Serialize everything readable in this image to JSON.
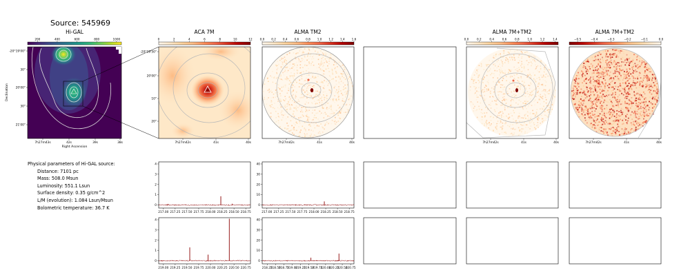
{
  "source_title": "Source: 545969",
  "colors": {
    "viridis": [
      "#440154",
      "#482878",
      "#3e4989",
      "#31688e",
      "#26828e",
      "#1f9e89",
      "#35b779",
      "#6ece58",
      "#b5de2b",
      "#fde725"
    ],
    "orrd": [
      "#fff7ec",
      "#fee8c8",
      "#fdd49e",
      "#fdbb84",
      "#fc8d59",
      "#ef6548",
      "#d7301f",
      "#b30000",
      "#7f0000"
    ],
    "spectrum_line": "#8b0000",
    "contour": "#b8b8b8"
  },
  "physical": {
    "header": "Physical parameters of Hi-GAL source:",
    "rows": [
      "Distance: 7101 pc",
      "Mass: 508.0 Msun",
      "Luminosity: 551.1 Lsun",
      "Surface density: 0.35 g/cm^2",
      "L/M (evolution): 1.084 Lsun/Msun",
      "Bolometric temperature: 36.7 K"
    ]
  },
  "chart_data": [
    {
      "id": "higal",
      "type": "heatmap",
      "title": "Hi-GAL",
      "colormap": "viridis",
      "colorbar_ticks": [
        "200",
        "400",
        "600",
        "800",
        "1000"
      ],
      "colorbar_range": [
        100,
        1050
      ],
      "xlabel": "Right Ascension",
      "ylabel": "Declination",
      "xticks": [
        "7h27m43s",
        "42s",
        "39s",
        "38s"
      ],
      "yticks": [
        "-20°19'00\"",
        "30\"",
        "20'00\"",
        "30\"",
        "21'00\""
      ],
      "peaks": [
        {
          "name": "north",
          "x": 0.42,
          "y": 0.13,
          "value": 1000
        },
        {
          "name": "center",
          "x": 0.52,
          "y": 0.5,
          "value": 700
        }
      ]
    },
    {
      "id": "aca7m",
      "type": "heatmap",
      "title": "ACA 7M",
      "colormap": "orrd",
      "colorbar_ticks": [
        "0",
        "2",
        "4",
        "6",
        "8",
        "10",
        "12"
      ],
      "colorbar_range": [
        0,
        12
      ],
      "xticks": [
        "7h27m42s",
        "41s",
        "40s"
      ],
      "yticks": [
        "-20°19'50\"",
        "20'00\"",
        "10\"",
        "20\""
      ]
    },
    {
      "id": "almatm2",
      "type": "heatmap",
      "title": "ALMA TM2",
      "colormap": "orrd",
      "colorbar_ticks": [
        "0.0",
        "0.2",
        "0.4",
        "0.6",
        "0.8",
        "1.0",
        "1.2",
        "1.4",
        "1.6"
      ],
      "colorbar_range": [
        0,
        1.6
      ],
      "xticks": [
        "7h27m42s",
        "41s",
        "40s"
      ]
    },
    {
      "id": "combo",
      "type": "heatmap",
      "title": "ALMA 7M+TM2",
      "colormap": "orrd",
      "colorbar_ticks": [
        "0.0",
        "0.2",
        "0.4",
        "0.6",
        "0.8",
        "1.0",
        "1.2",
        "1.4"
      ],
      "colorbar_range": [
        0,
        1.45
      ],
      "xticks": [
        "7h27m42s",
        "41s",
        "40s"
      ]
    },
    {
      "id": "combo2",
      "type": "heatmap",
      "title": "ALMA 7M+TM2",
      "colormap": "orrd_reversed",
      "colorbar_ticks": [
        "−0.5",
        "−0.4",
        "−0.3",
        "−0.2",
        "−0.1",
        "0.0"
      ],
      "colorbar_range": [
        -0.55,
        0
      ],
      "xticks": [
        "7h27m42s",
        "41s",
        "40s"
      ]
    },
    {
      "id": "spec_aca_1",
      "type": "line",
      "x_range": [
        216.9,
        218.85
      ],
      "ylim": [
        -0.3,
        4.2
      ],
      "xticks": [
        217.0,
        217.25,
        217.5,
        217.75,
        218.0,
        218.25,
        218.5,
        218.75
      ],
      "xtick_labels": [
        "217.00",
        "217.25",
        "217.50",
        "217.75",
        "218.00",
        "218.25",
        "218.50",
        "218.75"
      ],
      "yticks": [
        0,
        1,
        2,
        3,
        4
      ],
      "ytick_labels": [
        "0",
        "1",
        "2",
        "3",
        "4"
      ],
      "baseline": 0.0,
      "lines": [
        {
          "x": 218.22,
          "y": 0.85
        },
        {
          "x": 218.46,
          "y": 0.12
        },
        {
          "x": 217.1,
          "y": 0.1
        }
      ]
    },
    {
      "id": "spec_tm2_1",
      "type": "line",
      "x_range": [
        216.9,
        218.85
      ],
      "ylim": [
        -3,
        42
      ],
      "xticks": [
        217.0,
        217.25,
        217.5,
        217.75,
        218.0,
        218.25,
        218.5,
        218.75
      ],
      "xtick_labels": [
        "217.00",
        "217.25",
        "217.50",
        "217.75",
        "218.00",
        "218.25",
        "218.50",
        "218.75"
      ],
      "yticks": [
        0,
        10,
        20,
        30,
        40
      ],
      "ytick_labels": [
        "0",
        "10",
        "20",
        "30",
        "40"
      ],
      "baseline": 0.0,
      "lines": [
        {
          "x": 218.22,
          "y": 3.5
        }
      ]
    },
    {
      "id": "spec_aca_2",
      "type": "line",
      "x_range": [
        218.9,
        220.85
      ],
      "ylim": [
        -0.3,
        4.2
      ],
      "xticks": [
        219.0,
        219.25,
        219.5,
        219.75,
        220.0,
        220.25,
        220.5,
        220.75
      ],
      "xtick_labels": [
        "219.00",
        "219.25",
        "219.50",
        "219.75",
        "220.00",
        "220.25",
        "220.50",
        "220.75"
      ],
      "yticks": [
        0,
        1,
        2,
        3,
        4
      ],
      "ytick_labels": [
        "0",
        "1",
        "2",
        "3",
        "4"
      ],
      "baseline": 0.0,
      "lines": [
        {
          "x": 219.56,
          "y": 1.3
        },
        {
          "x": 219.95,
          "y": 0.6
        },
        {
          "x": 220.4,
          "y": 4.1
        }
      ]
    },
    {
      "id": "spec_tm2_2",
      "type": "line",
      "x_range": [
        218.1,
        220.85
      ],
      "ylim": [
        -3,
        42
      ],
      "xticks": [
        218.25,
        218.5,
        218.75,
        219.0,
        219.25,
        219.5,
        219.75,
        220.0,
        220.25,
        220.5,
        220.75
      ],
      "xtick_labels": [
        "218.25",
        "218.50",
        "218.75",
        "219.00",
        "219.25",
        "219.50",
        "219.75",
        "220.00",
        "220.25",
        "220.50",
        "220.75"
      ],
      "yticks": [
        0,
        10,
        20,
        30,
        40
      ],
      "ytick_labels": [
        "0",
        "10",
        "20",
        "30",
        "40"
      ],
      "baseline": 0.0,
      "lines": [
        {
          "x": 219.56,
          "y": 3.0
        },
        {
          "x": 220.4,
          "y": 7.0
        }
      ]
    }
  ]
}
